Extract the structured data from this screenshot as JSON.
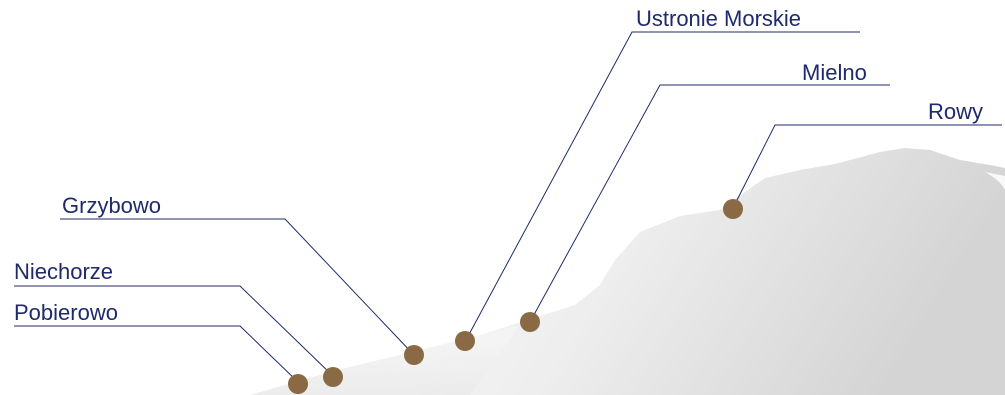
{
  "map": {
    "towns": [
      {
        "id": "pobierowo",
        "name": "Pobierowo"
      },
      {
        "id": "niechorze",
        "name": "Niechorze"
      },
      {
        "id": "grzybowo",
        "name": "Grzybowo"
      },
      {
        "id": "ustronie-morskie",
        "name": "Ustronie Morskie"
      },
      {
        "id": "mielno",
        "name": "Mielno"
      },
      {
        "id": "rowy",
        "name": "Rowy"
      }
    ],
    "colors": {
      "label": "#1f2a6b",
      "marker": "#8a6a45",
      "land_light": "#f6f6f6",
      "land_dark": "#d9d9d9"
    }
  }
}
